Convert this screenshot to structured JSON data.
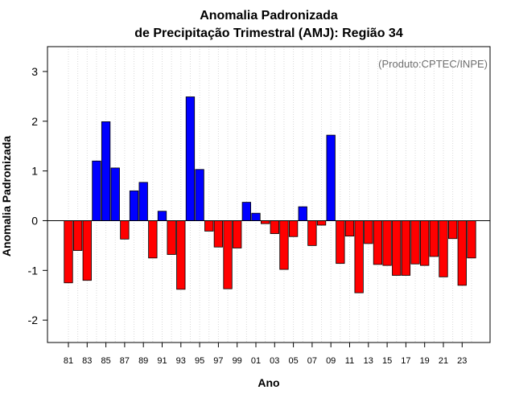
{
  "chart_data": {
    "type": "bar",
    "title_line1": "Anomalia Padronizada",
    "title_line2": "de Precipitação Trimestral (AMJ): Região 34",
    "xlabel": "Ano",
    "ylabel": "Anomalia Padronizada",
    "credit": "(Produto:CPTEC/INPE)",
    "ylim": [
      -2.45,
      3.5
    ],
    "yticks": [
      -2,
      -1,
      0,
      1,
      2,
      3
    ],
    "grid": "vertical-dotted",
    "categories": [
      "81",
      "82",
      "83",
      "84",
      "85",
      "86",
      "87",
      "88",
      "89",
      "90",
      "91",
      "92",
      "93",
      "94",
      "95",
      "96",
      "97",
      "98",
      "99",
      "00",
      "01",
      "02",
      "03",
      "04",
      "05",
      "06",
      "07",
      "08",
      "09",
      "10",
      "11",
      "12",
      "13",
      "14",
      "15",
      "16",
      "17",
      "18",
      "19",
      "20",
      "21",
      "22",
      "23",
      "24"
    ],
    "tick_labels": [
      "81",
      "83",
      "85",
      "87",
      "89",
      "91",
      "93",
      "95",
      "97",
      "99",
      "01",
      "03",
      "05",
      "07",
      "09",
      "11",
      "13",
      "15",
      "17",
      "19",
      "21",
      "23"
    ],
    "values": [
      -1.25,
      -0.6,
      -1.2,
      1.2,
      1.99,
      1.06,
      -0.37,
      0.6,
      0.77,
      -0.75,
      0.19,
      -0.68,
      -1.38,
      2.49,
      1.03,
      -0.21,
      -0.53,
      -1.37,
      -0.55,
      0.37,
      0.15,
      -0.06,
      -0.26,
      -0.98,
      -0.32,
      0.28,
      -0.5,
      -0.09,
      1.72,
      -0.86,
      -0.31,
      -1.45,
      -0.46,
      -0.88,
      -0.9,
      -1.1,
      -1.1,
      -0.87,
      -0.9,
      -0.72,
      -1.13,
      -0.36,
      -1.3,
      -0.75
    ],
    "colors": {
      "positive": "#0000ff",
      "negative": "#ff0000",
      "outline": "#000000",
      "grid": "#d9d9d9",
      "frame": "#000000"
    }
  }
}
